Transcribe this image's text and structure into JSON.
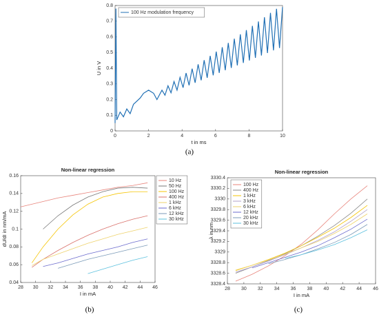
{
  "chart_data": [
    {
      "type": "line",
      "caption": "(a)",
      "xlabel": "t in ms",
      "ylabel": "U in V",
      "legend": "upper left",
      "xlim": [
        0,
        10
      ],
      "xticks": [
        0,
        2,
        4,
        6,
        8,
        10
      ],
      "ylim": [
        0,
        0.8
      ],
      "yticks": [
        0,
        0.1,
        0.2,
        0.3,
        0.4,
        0.5,
        0.6,
        0.7,
        0.8
      ],
      "x": [
        0,
        0.05,
        0.1,
        0.3,
        0.5,
        0.7,
        0.9,
        1.1,
        1.3,
        1.5,
        1.7,
        2.0,
        2.3,
        2.5,
        2.8,
        2.98,
        3.16,
        3.34,
        3.52,
        3.7,
        3.88,
        4.06,
        4.24,
        4.42,
        4.6,
        4.78,
        4.96,
        5.14,
        5.32,
        5.5,
        5.68,
        5.86,
        6.04,
        6.22,
        6.4,
        6.58,
        6.76,
        6.94,
        7.12,
        7.3,
        7.48,
        7.66,
        7.84,
        8.02,
        8.2,
        8.38,
        8.56,
        8.74,
        8.92,
        9.1,
        9.28,
        9.46,
        9.64,
        9.82,
        10
      ],
      "series": [
        {
          "name": "100 Hz modulation frequency",
          "color": "#1f6fb4",
          "values": [
            0.05,
            0.78,
            0.07,
            0.12,
            0.09,
            0.14,
            0.11,
            0.17,
            0.19,
            0.21,
            0.24,
            0.26,
            0.24,
            0.2,
            0.26,
            0.228,
            0.288,
            0.243,
            0.315,
            0.26,
            0.342,
            0.276,
            0.369,
            0.291,
            0.397,
            0.307,
            0.425,
            0.323,
            0.451,
            0.339,
            0.479,
            0.355,
            0.506,
            0.37,
            0.534,
            0.387,
            0.561,
            0.402,
            0.588,
            0.418,
            0.616,
            0.434,
            0.643,
            0.449,
            0.67,
            0.466,
            0.698,
            0.481,
            0.725,
            0.497,
            0.753,
            0.514,
            0.779,
            0.529,
            0.79
          ]
        }
      ]
    },
    {
      "type": "line",
      "caption": "(b)",
      "title": "Non-linear regression",
      "xlabel": "I in mA",
      "ylabel": "dU/dI in nm/mA",
      "legend": "outside upper right",
      "xlim": [
        28,
        46
      ],
      "xticks": [
        28,
        30,
        32,
        34,
        36,
        38,
        40,
        42,
        44,
        46
      ],
      "ylim": [
        0.04,
        0.16
      ],
      "yticks": [
        0.04,
        0.06,
        0.08,
        0.1,
        0.12,
        0.14,
        0.16
      ],
      "x": [
        28,
        29.5,
        31,
        33,
        35,
        37,
        39,
        41,
        43,
        45
      ],
      "series": [
        {
          "name": "10 Hz",
          "color": "#e8837a",
          "values": [
            0.125,
            0.128,
            0.131,
            0.135,
            0.138,
            0.141,
            0.144,
            0.147,
            0.149,
            0.152
          ]
        },
        {
          "name": "50 Hz",
          "color": "#777777",
          "values": [
            null,
            null,
            0.1,
            0.115,
            0.127,
            0.136,
            0.142,
            0.146,
            0.147,
            0.146
          ]
        },
        {
          "name": "100 Hz",
          "color": "#f5c400",
          "values": [
            null,
            0.062,
            0.08,
            0.1,
            0.116,
            0.128,
            0.136,
            0.14,
            0.142,
            0.142
          ]
        },
        {
          "name": "400 Hz",
          "color": "#d9706a",
          "values": [
            null,
            0.057,
            0.066,
            0.076,
            0.085,
            0.093,
            0.1,
            0.106,
            0.111,
            0.115
          ]
        },
        {
          "name": "1 kHz",
          "color": "#eed26a",
          "values": [
            null,
            0.059,
            0.066,
            0.072,
            0.078,
            0.084,
            0.089,
            0.094,
            0.098,
            0.102
          ]
        },
        {
          "name": "6 kHz",
          "color": "#6a6acd",
          "values": [
            null,
            null,
            0.058,
            0.062,
            0.067,
            0.072,
            0.076,
            0.08,
            0.085,
            0.089
          ]
        },
        {
          "name": "12 kHz",
          "color": "#7a9ab8",
          "values": [
            null,
            null,
            null,
            0.056,
            0.061,
            0.066,
            0.07,
            0.074,
            0.078,
            0.082
          ]
        },
        {
          "name": "30 kHz",
          "color": "#5bc0de",
          "values": [
            null,
            null,
            null,
            null,
            null,
            0.05,
            0.055,
            0.06,
            0.065,
            0.069
          ]
        }
      ]
    },
    {
      "type": "line",
      "caption": "(c)",
      "title": "Non-linear regression",
      "xlabel": "I in mA",
      "ylabel": "λ in nm",
      "legend": "upper left",
      "xlim": [
        28,
        46
      ],
      "xticks": [
        28,
        30,
        32,
        34,
        36,
        38,
        40,
        42,
        44,
        46
      ],
      "ylim": [
        3328.4,
        3330.4
      ],
      "yticks": [
        3328.4,
        3328.6,
        3328.8,
        3329,
        3329.2,
        3329.4,
        3329.6,
        3329.8,
        3330,
        3330.2,
        3330.4
      ],
      "x": [
        29,
        31,
        33,
        35,
        37,
        39,
        41,
        43,
        45
      ],
      "series": [
        {
          "name": "100 Hz",
          "color": "#e8837a",
          "values": [
            3328.45,
            3328.58,
            3328.74,
            3328.93,
            3329.15,
            3329.42,
            3329.72,
            3330,
            3330.25
          ]
        },
        {
          "name": "400 Hz",
          "color": "#888888",
          "values": [
            3328.6,
            3328.72,
            3328.84,
            3328.97,
            3329.12,
            3329.3,
            3329.5,
            3329.73,
            3330
          ]
        },
        {
          "name": "1 kHz",
          "color": "#f5c400",
          "values": [
            3328.65,
            3328.75,
            3328.86,
            3328.98,
            3329.12,
            3329.28,
            3329.45,
            3329.65,
            3329.88
          ]
        },
        {
          "name": "3 kHz",
          "color": "#b0a0c8",
          "values": [
            3328.62,
            3328.72,
            3328.83,
            3328.95,
            3329.08,
            3329.22,
            3329.38,
            3329.58,
            3329.8
          ]
        },
        {
          "name": "6 kHz",
          "color": "#eed26a",
          "values": [
            3328.66,
            3328.75,
            3328.85,
            3328.96,
            3329.08,
            3329.2,
            3329.35,
            3329.52,
            3329.72
          ]
        },
        {
          "name": "12 kHz",
          "color": "#6a6acd",
          "values": [
            null,
            3328.7,
            3328.8,
            3328.9,
            3329,
            3329.12,
            3329.27,
            3329.43,
            3329.62
          ]
        },
        {
          "name": "20 kHz",
          "color": "#7a9ab8",
          "values": [
            null,
            null,
            3328.78,
            3328.86,
            3328.95,
            3329.06,
            3329.18,
            3329.33,
            3329.52
          ]
        },
        {
          "name": "30 kHz",
          "color": "#5bc0de",
          "values": [
            null,
            null,
            null,
            3328.88,
            3328.95,
            3329.04,
            3329.14,
            3329.27,
            3329.42
          ]
        }
      ]
    }
  ]
}
